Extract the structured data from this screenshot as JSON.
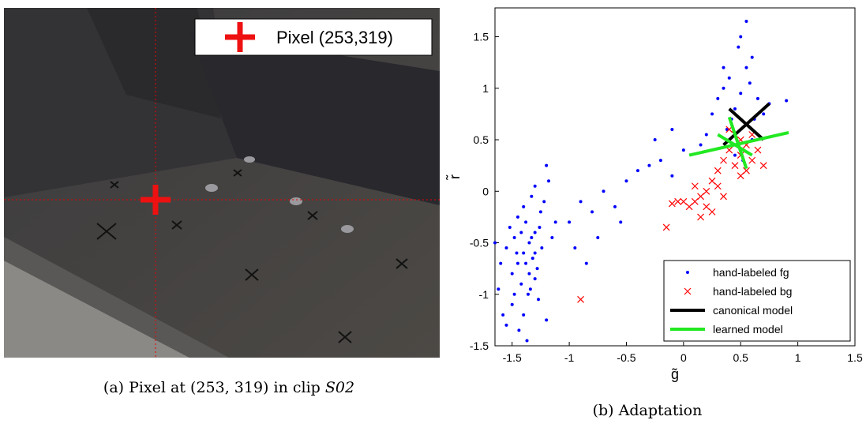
{
  "photo": {
    "legend": "Pixel (253,319)"
  },
  "caption_a": {
    "text": "(a) Pixel at (253, 319) in clip ",
    "clip": "S02"
  },
  "caption_b": "(b) Adaptation",
  "chart_data": {
    "type": "scatter",
    "xlabel": "g̃",
    "ylabel": "r̃",
    "xlim": [
      -1.65,
      1.5
    ],
    "ylim": [
      -1.5,
      1.78
    ],
    "xticks": [
      -1.5,
      -1,
      -0.5,
      0,
      0.5,
      1,
      1.5
    ],
    "yticks": [
      -1.5,
      -1,
      -0.5,
      0,
      0.5,
      1,
      1.5
    ],
    "legend": "lower right",
    "series": [
      {
        "name": "hand-labeled fg",
        "color": "#0000ff",
        "marker": "dot",
        "x": [
          -1.4,
          -1.35,
          -1.45,
          -1.3,
          -1.5,
          -1.38,
          -1.42,
          -1.25,
          -1.55,
          -1.32,
          -1.48,
          -1.36,
          -1.28,
          -1.6,
          -1.22,
          -1.4,
          -1.33,
          -1.45,
          -1.5,
          -1.3,
          -1.18,
          -1.2,
          -1.62,
          -1.44,
          -1.37,
          -1.27,
          -1.52,
          -1.4,
          -1.58,
          -1.24,
          -1.34,
          -1.46,
          -1.42,
          -1.3,
          -1.26,
          -1.35,
          -1.55,
          -1.15,
          -1.12,
          -1.65,
          -1.2,
          -1.3,
          -1.48,
          -1.38,
          -1.33,
          -1.0,
          -0.9,
          -0.8,
          -0.7,
          -0.6,
          -0.5,
          -0.4,
          -0.3,
          -0.2,
          -0.1,
          0.0,
          -0.95,
          -0.75,
          -0.55,
          -0.85,
          -0.25,
          -0.1,
          0.3,
          0.35,
          0.4,
          0.45,
          0.5,
          0.55,
          0.6,
          0.5,
          0.55,
          0.48,
          0.42,
          0.38,
          0.65,
          0.7,
          0.75,
          0.9,
          0.25,
          0.2,
          0.15,
          0.6,
          0.52,
          0.45,
          0.58,
          0.35,
          0.62
        ],
        "y": [
          -0.6,
          -0.5,
          -0.7,
          -0.4,
          -0.8,
          -0.3,
          -0.9,
          -0.2,
          -0.55,
          -0.65,
          -0.45,
          -1.0,
          -0.75,
          -0.7,
          -0.1,
          -1.2,
          -0.05,
          -0.25,
          -1.1,
          -0.85,
          0.1,
          0.25,
          -0.95,
          -1.35,
          -1.45,
          -1.05,
          -0.35,
          -0.15,
          -1.2,
          -0.55,
          -0.95,
          -0.6,
          -0.4,
          -0.6,
          -0.35,
          -0.8,
          -1.3,
          -0.45,
          -0.3,
          -0.5,
          -1.25,
          0.05,
          -1.0,
          -0.7,
          -0.45,
          -0.3,
          -0.1,
          -0.2,
          0.0,
          -0.15,
          0.1,
          0.2,
          0.25,
          0.3,
          0.15,
          0.4,
          -0.55,
          -0.45,
          -0.3,
          -0.7,
          0.5,
          0.6,
          0.9,
          1.0,
          1.1,
          0.8,
          0.95,
          1.2,
          1.3,
          1.5,
          1.65,
          1.4,
          0.7,
          0.6,
          0.9,
          0.75,
          0.85,
          0.88,
          0.75,
          0.55,
          0.45,
          0.5,
          0.3,
          0.35,
          1.05,
          1.2,
          0.7
        ]
      },
      {
        "name": "hand-labeled bg",
        "color": "#ff0000",
        "marker": "x",
        "x": [
          0.3,
          0.35,
          0.4,
          0.45,
          0.5,
          0.55,
          0.6,
          0.65,
          0.7,
          0.25,
          0.2,
          0.15,
          0.1,
          0.05,
          0.0,
          -0.05,
          -0.1,
          0.2,
          0.3,
          0.5,
          0.45,
          0.4,
          0.55,
          0.35,
          0.25,
          0.15,
          0.1,
          -0.15,
          -0.9,
          0.6,
          0.5
        ],
        "y": [
          0.2,
          0.3,
          0.4,
          0.25,
          0.35,
          0.45,
          0.3,
          0.4,
          0.25,
          0.1,
          0.0,
          -0.05,
          -0.1,
          -0.15,
          -0.1,
          -0.1,
          -0.12,
          -0.15,
          0.05,
          0.5,
          0.55,
          0.6,
          0.2,
          -0.05,
          -0.2,
          -0.25,
          0.05,
          -0.35,
          -1.05,
          0.55,
          0.15
        ]
      },
      {
        "name": "canonical model",
        "color": "#000000",
        "marker": "line",
        "x": [
          0.35,
          0.75,
          null,
          0.4,
          0.7
        ],
        "y": [
          0.45,
          0.85,
          null,
          0.8,
          0.5
        ]
      },
      {
        "name": "learned model",
        "color": "#22e822",
        "marker": "line",
        "x": [
          0.05,
          0.92,
          null,
          0.4,
          0.55,
          null,
          0.3,
          0.6
        ],
        "y": [
          0.35,
          0.57,
          null,
          0.72,
          0.22,
          null,
          0.55,
          0.35
        ]
      }
    ]
  }
}
